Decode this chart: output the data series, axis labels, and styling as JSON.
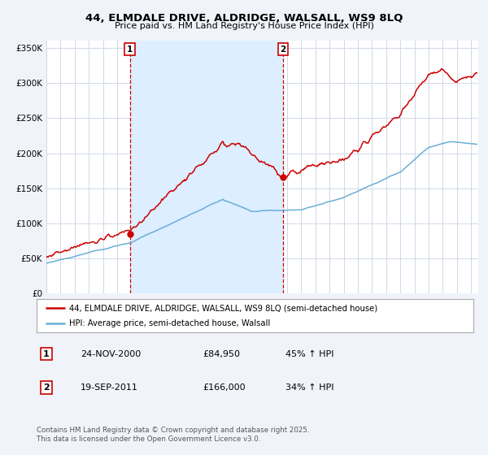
{
  "title_line1": "44, ELMDALE DRIVE, ALDRIDGE, WALSALL, WS9 8LQ",
  "title_line2": "Price paid vs. HM Land Registry's House Price Index (HPI)",
  "ylabel_ticks": [
    "£0",
    "£50K",
    "£100K",
    "£150K",
    "£200K",
    "£250K",
    "£300K",
    "£350K"
  ],
  "ylabel_values": [
    0,
    50000,
    100000,
    150000,
    200000,
    250000,
    300000,
    350000
  ],
  "ylim": [
    0,
    360000
  ],
  "xlim_start": 1995.0,
  "xlim_end": 2025.5,
  "hpi_color": "#6baed6",
  "price_color": "#cc0000",
  "shade_color": "#dceeff",
  "marker1_x": 2000.9,
  "marker1_y": 84950,
  "marker1_label": "1",
  "marker2_x": 2011.72,
  "marker2_y": 166000,
  "marker2_label": "2",
  "legend_line1": "44, ELMDALE DRIVE, ALDRIDGE, WALSALL, WS9 8LQ (semi-detached house)",
  "legend_line2": "HPI: Average price, semi-detached house, Walsall",
  "table_row1": [
    "1",
    "24-NOV-2000",
    "£84,950",
    "45% ↑ HPI"
  ],
  "table_row2": [
    "2",
    "19-SEP-2011",
    "£166,000",
    "34% ↑ HPI"
  ],
  "footer": "Contains HM Land Registry data © Crown copyright and database right 2025.\nThis data is licensed under the Open Government Licence v3.0.",
  "background_color": "#f0f4fa",
  "plot_bg_color": "#ffffff",
  "grid_color": "#d0d8e8"
}
